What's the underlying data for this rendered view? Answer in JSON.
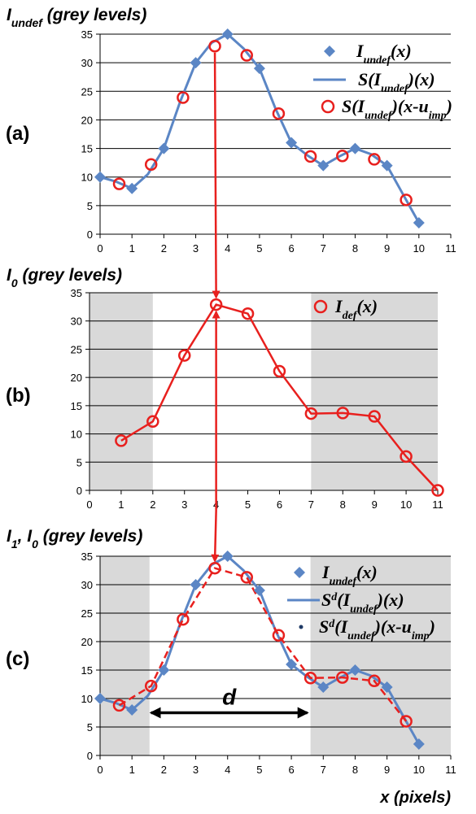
{
  "colors": {
    "blue": "#5b86c5",
    "red": "#e8201e",
    "shade": "#d9d9d9",
    "dot": "#1f3a66"
  },
  "chart_data": [
    {
      "panel_label": "(a)",
      "type": "line",
      "ylabel_parts": [
        "I",
        "undef",
        " (grey levels)"
      ],
      "xlim": [
        0,
        11
      ],
      "ylim": [
        0,
        35
      ],
      "xticks": [
        0,
        1,
        2,
        3,
        4,
        5,
        6,
        7,
        8,
        9,
        10,
        11
      ],
      "yticks": [
        0,
        5,
        10,
        15,
        20,
        25,
        30,
        35
      ],
      "grid": "horizontal",
      "legend_position": "top-right",
      "shaded_x": [],
      "series": [
        {
          "name_parts": [
            "I",
            "undef",
            "(x)"
          ],
          "style": "blue-diamond",
          "x": [
            0,
            1,
            2,
            3,
            4,
            5,
            6,
            7,
            8,
            9,
            10
          ],
          "y": [
            10,
            8,
            15,
            30,
            35,
            29,
            16,
            12,
            15,
            12,
            2
          ]
        },
        {
          "name_parts": [
            "S(I",
            "undef",
            ")(x)"
          ],
          "style": "blue-line",
          "x": [
            0,
            0.5,
            1,
            1.5,
            2,
            2.5,
            3,
            3.5,
            4,
            4.5,
            5,
            5.5,
            6,
            6.5,
            7,
            7.5,
            8,
            8.5,
            9,
            9.5,
            10
          ],
          "y": [
            10,
            9.2,
            8,
            10.5,
            15,
            23,
            30,
            33.5,
            35,
            32.5,
            29,
            22,
            16,
            13.8,
            12,
            13.6,
            15,
            14,
            12,
            7,
            2
          ]
        },
        {
          "name_parts": [
            "S(I",
            "undef",
            ")(x-u",
            "imp",
            ")"
          ],
          "style": "red-circle",
          "x": [
            0.6,
            1.6,
            2.6,
            3.6,
            4.6,
            5.6,
            6.6,
            7.6,
            8.6,
            9.6
          ],
          "y": [
            8.8,
            12.2,
            23.9,
            32.9,
            31.3,
            21.1,
            13.6,
            13.7,
            13.1,
            6.0
          ]
        }
      ]
    },
    {
      "panel_label": "(b)",
      "type": "line",
      "ylabel_parts": [
        "I",
        "0",
        " (grey levels)"
      ],
      "xlim": [
        0,
        11
      ],
      "ylim": [
        0,
        35
      ],
      "xticks": [
        0,
        1,
        2,
        3,
        4,
        5,
        6,
        7,
        8,
        9,
        10,
        11
      ],
      "yticks": [
        0,
        5,
        10,
        15,
        20,
        25,
        30,
        35
      ],
      "grid": "horizontal",
      "legend_position": "top-right",
      "shaded_x": [
        [
          0,
          2
        ],
        [
          7,
          11
        ]
      ],
      "series": [
        {
          "name_parts": [
            "I",
            "def",
            "(x)"
          ],
          "style": "red-circle-line",
          "x": [
            1,
            2,
            3,
            4,
            5,
            6,
            7,
            8,
            9,
            10,
            11
          ],
          "y": [
            8.8,
            12.2,
            23.9,
            32.9,
            31.3,
            21.1,
            13.6,
            13.7,
            13.1,
            6.0,
            0
          ]
        }
      ]
    },
    {
      "panel_label": "(c)",
      "type": "line",
      "ylabel_parts": [
        "I",
        "1",
        ", I",
        "0",
        " (grey levels)"
      ],
      "xlabel": "x (pixels)",
      "xlim": [
        0,
        11
      ],
      "ylim": [
        0,
        35
      ],
      "xticks": [
        0,
        1,
        2,
        3,
        4,
        5,
        6,
        7,
        8,
        9,
        10,
        11
      ],
      "yticks": [
        0,
        5,
        10,
        15,
        20,
        25,
        30,
        35
      ],
      "grid": "horizontal",
      "legend_position": "top-right",
      "shaded_x": [
        [
          0,
          1.55
        ],
        [
          6.6,
          11
        ]
      ],
      "annotation": {
        "text": "d",
        "from": 1.6,
        "to": 6.5,
        "y": 7.5
      },
      "series": [
        {
          "name_parts": [
            "I",
            "undef",
            "(x)"
          ],
          "style": "blue-diamond",
          "x": [
            0,
            1,
            2,
            3,
            4,
            5,
            6,
            7,
            8,
            9,
            10
          ],
          "y": [
            10,
            8,
            15,
            30,
            35,
            29,
            16,
            12,
            15,
            12,
            2
          ]
        },
        {
          "name_parts": [
            "S",
            "d",
            "(I",
            "undef",
            ")(x)"
          ],
          "style": "blue-line",
          "x": [
            0,
            0.5,
            1,
            1.5,
            2,
            2.5,
            3,
            3.5,
            4,
            4.5,
            5,
            5.5,
            6,
            6.5,
            7,
            7.5,
            8,
            8.5,
            9,
            9.5,
            10
          ],
          "y": [
            10,
            9.2,
            8,
            10.5,
            15,
            23,
            30,
            33.5,
            35,
            32.5,
            29,
            22,
            16,
            13.8,
            12,
            13.6,
            15,
            14,
            12,
            7,
            2
          ]
        },
        {
          "name_parts": [
            "S",
            "d",
            "(I",
            "undef",
            ")(x-u",
            "imp",
            ")"
          ],
          "style": "red-dash-dot",
          "x": [
            0.6,
            1.6,
            2.6,
            3.6,
            4.6,
            5.6,
            6.6,
            7.6,
            8.6,
            9.6
          ],
          "y": [
            8.8,
            12.2,
            23.9,
            32.9,
            31.3,
            21.1,
            13.6,
            13.7,
            13.1,
            6.0
          ]
        },
        {
          "name_parts": [],
          "style": "red-circle",
          "x": [
            0.6,
            1.6,
            2.6,
            3.6,
            4.6,
            5.6,
            6.6,
            7.6,
            8.6,
            9.6
          ],
          "y": [
            8.8,
            12.2,
            23.9,
            32.9,
            31.3,
            21.1,
            13.6,
            13.7,
            13.1,
            6.0
          ]
        }
      ]
    }
  ]
}
